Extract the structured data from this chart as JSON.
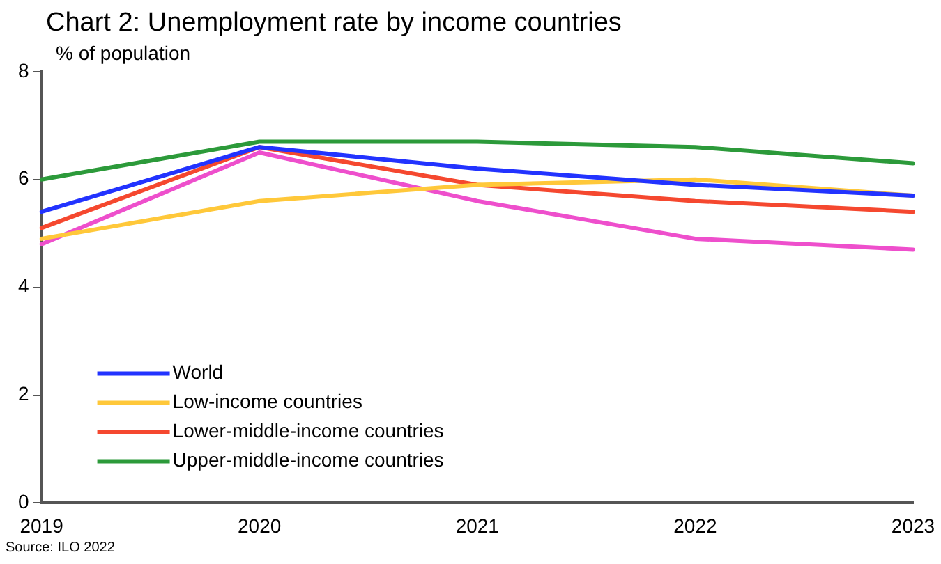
{
  "chart_data": {
    "type": "line",
    "title": "Chart 2: Unemployment rate by income countries",
    "ylabel": "% of population",
    "categories": [
      "2019",
      "2020",
      "2021",
      "2022",
      "2023"
    ],
    "series": [
      {
        "name": "World",
        "color": "#2233ff",
        "values": [
          5.4,
          6.6,
          6.2,
          5.9,
          5.7
        ]
      },
      {
        "name": "Low-income countries",
        "color": "#ffc83a",
        "values": [
          4.9,
          5.6,
          5.9,
          6.0,
          5.7
        ]
      },
      {
        "name": "Lower-middle-income countries",
        "color": "#f5482f",
        "values": [
          5.1,
          6.6,
          5.9,
          5.6,
          5.4
        ]
      },
      {
        "name": "Upper-middle-income countries",
        "color": "#2c9a3a",
        "values": [
          6.0,
          6.7,
          6.7,
          6.6,
          6.3
        ]
      },
      {
        "color": "#ee4fcc",
        "values": [
          4.8,
          6.5,
          5.6,
          4.9,
          4.7
        ]
      }
    ],
    "ylim": [
      0,
      8
    ],
    "yticks": [
      0,
      2,
      4,
      6,
      8
    ],
    "grid": false,
    "legend": "bottom left",
    "marker": "none",
    "line_style": "solid",
    "annotations": [
      "Source: ILO 2022"
    ]
  }
}
